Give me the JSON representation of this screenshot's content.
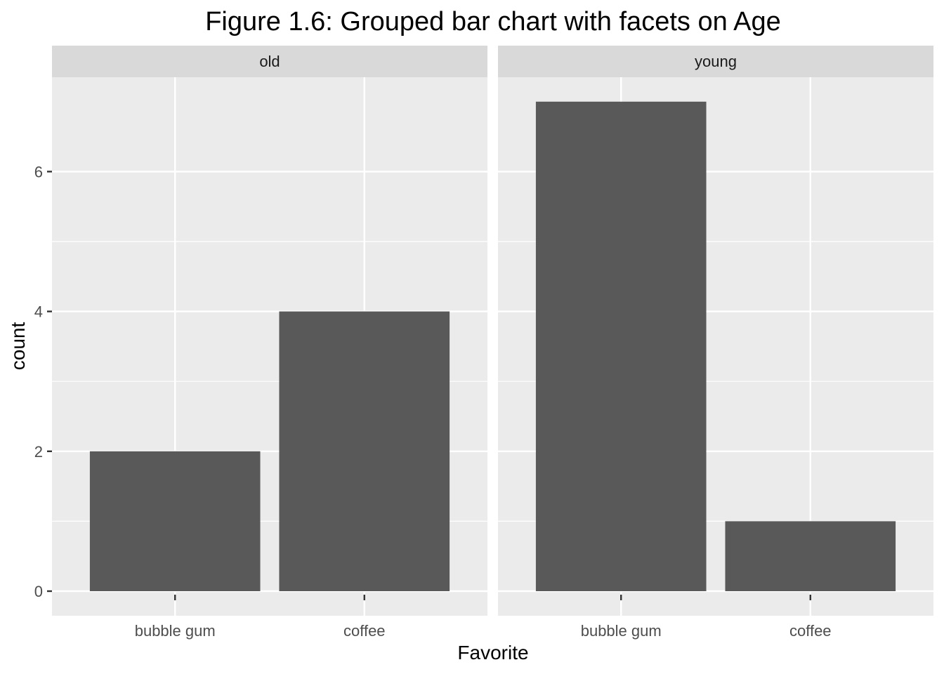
{
  "chart_data": {
    "type": "bar",
    "title": "Figure 1.6: Grouped bar chart with facets on Age",
    "xlabel": "Favorite",
    "ylabel": "count",
    "ylim": [
      0,
      7.35
    ],
    "yticks": [
      0,
      2,
      4,
      6
    ],
    "categories": [
      "bubble gum",
      "coffee"
    ],
    "facets": [
      {
        "label": "old",
        "values": [
          2,
          4
        ]
      },
      {
        "label": "young",
        "values": [
          7,
          1
        ]
      }
    ],
    "grid": true,
    "bar_color": "#595959",
    "panel_background": "#ebebeb",
    "strip_background": "#d9d9d9"
  }
}
